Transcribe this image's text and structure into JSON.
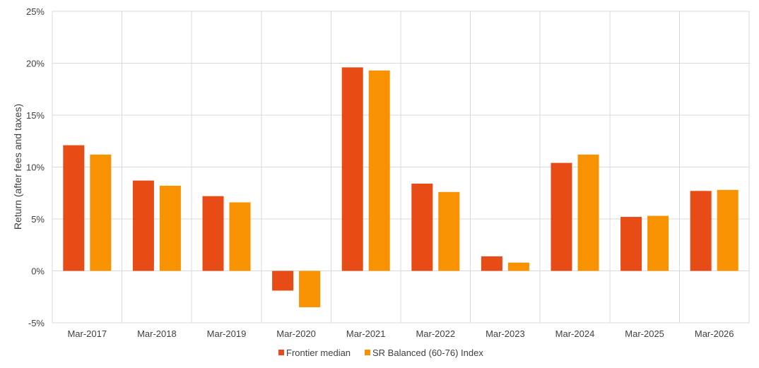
{
  "chart_data": {
    "type": "bar",
    "categories": [
      "Mar-2017",
      "Mar-2018",
      "Mar-2019",
      "Mar-2020",
      "Mar-2021",
      "Mar-2022",
      "Mar-2023",
      "Mar-2024",
      "Mar-2025",
      "Mar-2026"
    ],
    "series": [
      {
        "name": "Frontier median",
        "color": "#e84c16",
        "values": [
          12.1,
          8.7,
          7.2,
          -1.9,
          19.6,
          8.4,
          1.4,
          10.4,
          5.2,
          7.7
        ]
      },
      {
        "name": "SR Balanced (60-76) Index",
        "color": "#f99200",
        "values": [
          11.2,
          8.2,
          6.6,
          -3.5,
          19.3,
          7.6,
          0.8,
          11.2,
          5.3,
          7.8
        ]
      }
    ],
    "title": "",
    "xlabel": "",
    "ylabel": "Return (after fees and taxes)",
    "ylim": [
      -5,
      25
    ],
    "yticks": [
      -5,
      0,
      5,
      10,
      15,
      20,
      25
    ],
    "ytick_labels": [
      "-5%",
      "0%",
      "5%",
      "10%",
      "15%",
      "20%",
      "25%"
    ],
    "grid": true,
    "legend_position": "bottom"
  }
}
